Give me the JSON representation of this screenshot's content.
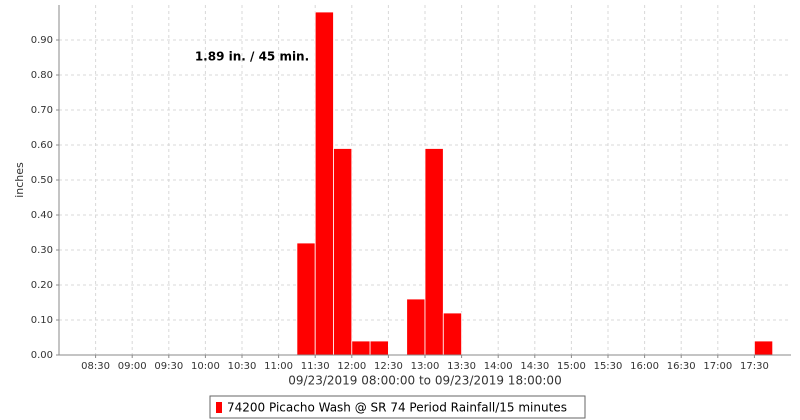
{
  "chart_data": {
    "type": "histogram",
    "annotation": "1.89 in. / 45 min.",
    "xlabel": "09/23/2019 08:00:00 to 09/23/2019 18:00:00",
    "ylabel": "inches",
    "color": "#ff0000",
    "series_name": "74200 Picacho Wash @ SR 74 Period Rainfall/15 minutes",
    "bins": [
      11.25,
      11.5,
      11.75,
      12,
      12.25,
      12.5,
      12.75,
      13,
      13.25,
      13.5,
      13.75,
      14,
      14.25,
      14.5,
      14.75,
      15,
      15.25,
      15.5,
      15.75,
      16,
      16.25,
      16.5,
      16.75,
      17,
      17.25,
      17.5,
      17.75
    ],
    "values": [
      0.32,
      0.98,
      0.59,
      0.04,
      0.04,
      0,
      0.16,
      0.59,
      0.12,
      0,
      0,
      0,
      0,
      0,
      0,
      0,
      0,
      0,
      0,
      0,
      0,
      0,
      0,
      0,
      0,
      0.04
    ],
    "xlim": [
      8,
      18
    ],
    "ylim": [
      0,
      1
    ],
    "xticks": [
      {
        "value": 8.5,
        "label": "08:30"
      },
      {
        "value": 9,
        "label": "09:00"
      },
      {
        "value": 9.5,
        "label": "09:30"
      },
      {
        "value": 10,
        "label": "10:00"
      },
      {
        "value": 10.5,
        "label": "10:30"
      },
      {
        "value": 11,
        "label": "11:00"
      },
      {
        "value": 11.5,
        "label": "11:30"
      },
      {
        "value": 12,
        "label": "12:00"
      },
      {
        "value": 12.5,
        "label": "12:30"
      },
      {
        "value": 13,
        "label": "13:00"
      },
      {
        "value": 13.5,
        "label": "13:30"
      },
      {
        "value": 14,
        "label": "14:00"
      },
      {
        "value": 14.5,
        "label": "14:30"
      },
      {
        "value": 15,
        "label": "15:00"
      },
      {
        "value": 15.5,
        "label": "15:30"
      },
      {
        "value": 16,
        "label": "16:00"
      },
      {
        "value": 16.5,
        "label": "16:30"
      },
      {
        "value": 17,
        "label": "17:00"
      },
      {
        "value": 17.5,
        "label": "17:30"
      }
    ],
    "yticks": [
      {
        "value": 0,
        "label": "0.00"
      },
      {
        "value": 0.1,
        "label": "0.10"
      },
      {
        "value": 0.2,
        "label": "0.20"
      },
      {
        "value": 0.3,
        "label": "0.30"
      },
      {
        "value": 0.4,
        "label": "0.40"
      },
      {
        "value": 0.5,
        "label": "0.50"
      },
      {
        "value": 0.6,
        "label": "0.60"
      },
      {
        "value": 0.7,
        "label": "0.70"
      },
      {
        "value": 0.8,
        "label": "0.80"
      },
      {
        "value": 0.9,
        "label": "0.90"
      }
    ],
    "grid": true
  }
}
